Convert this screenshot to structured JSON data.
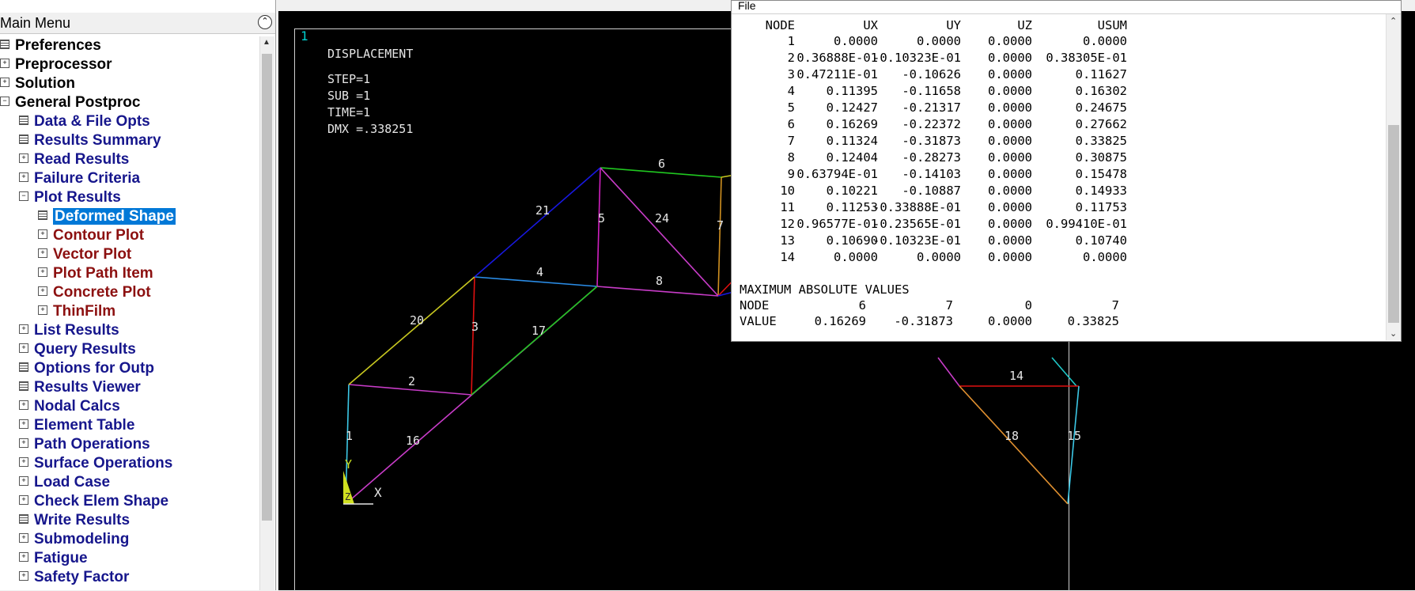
{
  "menu": {
    "title": "Main Menu",
    "items": [
      {
        "label": "Preferences",
        "icon": "grid",
        "color": "black",
        "level": 0
      },
      {
        "label": "Preprocessor",
        "icon": "plus",
        "color": "black",
        "level": 0
      },
      {
        "label": "Solution",
        "icon": "plus",
        "color": "black",
        "level": 0
      },
      {
        "label": "General Postproc",
        "icon": "minus",
        "color": "black",
        "level": 0
      },
      {
        "label": "Data & File Opts",
        "icon": "grid",
        "color": "blue",
        "level": 1
      },
      {
        "label": "Results Summary",
        "icon": "grid",
        "color": "blue",
        "level": 1
      },
      {
        "label": "Read Results",
        "icon": "plus",
        "color": "blue",
        "level": 1
      },
      {
        "label": "Failure Criteria",
        "icon": "plus",
        "color": "blue",
        "level": 1
      },
      {
        "label": "Plot Results",
        "icon": "minus",
        "color": "blue",
        "level": 1
      },
      {
        "label": "Deformed Shape",
        "icon": "grid",
        "color": "blue",
        "level": 2,
        "selected": true
      },
      {
        "label": "Contour Plot",
        "icon": "plus",
        "color": "red",
        "level": 2
      },
      {
        "label": "Vector Plot",
        "icon": "plus",
        "color": "red",
        "level": 2
      },
      {
        "label": "Plot Path Item",
        "icon": "plus",
        "color": "red",
        "level": 2
      },
      {
        "label": "Concrete Plot",
        "icon": "plus",
        "color": "red",
        "level": 2
      },
      {
        "label": "ThinFilm",
        "icon": "plus",
        "color": "red",
        "level": 2
      },
      {
        "label": "List Results",
        "icon": "plus",
        "color": "blue",
        "level": 1
      },
      {
        "label": "Query Results",
        "icon": "plus",
        "color": "blue",
        "level": 1
      },
      {
        "label": "Options for Outp",
        "icon": "grid",
        "color": "blue",
        "level": 1
      },
      {
        "label": "Results Viewer",
        "icon": "grid",
        "color": "blue",
        "level": 1
      },
      {
        "label": "Nodal Calcs",
        "icon": "plus",
        "color": "blue",
        "level": 1
      },
      {
        "label": "Element Table",
        "icon": "plus",
        "color": "blue",
        "level": 1
      },
      {
        "label": "Path Operations",
        "icon": "plus",
        "color": "blue",
        "level": 1
      },
      {
        "label": "Surface Operations",
        "icon": "plus",
        "color": "blue",
        "level": 1
      },
      {
        "label": "Load Case",
        "icon": "plus",
        "color": "blue",
        "level": 1
      },
      {
        "label": "Check Elem Shape",
        "icon": "plus",
        "color": "blue",
        "level": 1
      },
      {
        "label": "Write Results",
        "icon": "grid",
        "color": "blue",
        "level": 1
      },
      {
        "label": "Submodeling",
        "icon": "plus",
        "color": "blue",
        "level": 1
      },
      {
        "label": "Fatigue",
        "icon": "plus",
        "color": "blue",
        "level": 1
      },
      {
        "label": "Safety Factor",
        "icon": "plus",
        "color": "blue",
        "level": 1
      }
    ]
  },
  "graphics": {
    "window_number": "1",
    "title": "DISPLACEMENT",
    "step": "STEP=1",
    "sub": "SUB =1",
    "time": "TIME=1",
    "dmx": "DMX =.338251",
    "axis_x": "X",
    "axis_y": "Y",
    "axis_z": "Z",
    "element_labels": [
      "1",
      "2",
      "3",
      "4",
      "5",
      "6",
      "7",
      "8",
      "14",
      "15",
      "16",
      "17",
      "18",
      "20",
      "21",
      "24"
    ]
  },
  "list_window": {
    "menu_file": "File",
    "headers": [
      "NODE",
      "UX",
      "UY",
      "UZ",
      "USUM"
    ],
    "rows": [
      [
        "1",
        "0.0000",
        "0.0000",
        "0.0000",
        "0.0000"
      ],
      [
        "2",
        "0.36888E-01",
        "-0.10323E-01",
        "0.0000",
        "0.38305E-01"
      ],
      [
        "3",
        "0.47211E-01",
        "-0.10626",
        "0.0000",
        "0.11627"
      ],
      [
        "4",
        "0.11395",
        "-0.11658",
        "0.0000",
        "0.16302"
      ],
      [
        "5",
        "0.12427",
        "-0.21317",
        "0.0000",
        "0.24675"
      ],
      [
        "6",
        "0.16269",
        "-0.22372",
        "0.0000",
        "0.27662"
      ],
      [
        "7",
        "0.11324",
        "-0.31873",
        "0.0000",
        "0.33825"
      ],
      [
        "8",
        "0.12404",
        "-0.28273",
        "0.0000",
        "0.30875"
      ],
      [
        "9",
        "0.63794E-01",
        "-0.14103",
        "0.0000",
        "0.15478"
      ],
      [
        "10",
        "0.10221",
        "-0.10887",
        "0.0000",
        "0.14933"
      ],
      [
        "11",
        "0.11253",
        "-0.33888E-01",
        "0.0000",
        "0.11753"
      ],
      [
        "12",
        "0.96577E-01",
        "-0.23565E-01",
        "0.0000",
        "0.99410E-01"
      ],
      [
        "13",
        "0.10690",
        "-0.10323E-01",
        "0.0000",
        "0.10740"
      ],
      [
        "14",
        "0.0000",
        "0.0000",
        "0.0000",
        "0.0000"
      ]
    ],
    "max_title": "MAXIMUM ABSOLUTE VALUES",
    "max_node_label": "NODE",
    "max_nodes": [
      "6",
      "7",
      "0",
      "7"
    ],
    "max_value_label": "VALUE",
    "max_values": [
      "0.16269",
      "-0.31873",
      "0.0000",
      "0.33825"
    ]
  },
  "colors": {
    "selection": "#0078d7",
    "menu_blue": "#16168c",
    "menu_red": "#8c1010",
    "graphics_bg": "#000000"
  }
}
